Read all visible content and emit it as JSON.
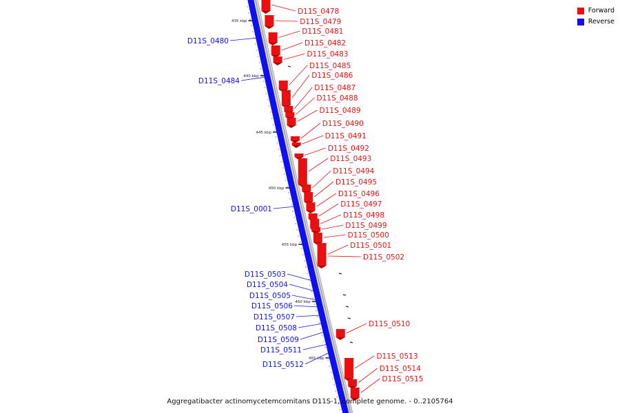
{
  "colors": {
    "forward": "#e81010",
    "reverse": "#1010ee",
    "backbone": "#b8b8b8"
  },
  "legend": [
    {
      "label": "Forward",
      "color": "#e81010"
    },
    {
      "label": "Reverse",
      "color": "#1010ee"
    }
  ],
  "caption": "Aggregatibacter actinomycetemcomitans D11S-1, complete genome. - 0..2105764",
  "ticks": [
    "435 kbp",
    "440 kbp",
    "445 kbp",
    "450 kbp",
    "455 kbp",
    "460 kbp",
    "465 kbp"
  ],
  "forward_labels": [
    "D11S_0478",
    "D11S_0479",
    "D11S_0481",
    "D11S_0482",
    "D11S_0483",
    "D11S_0485",
    "D11S_0486",
    "D11S_0487",
    "D11S_0488",
    "D11S_0489",
    "D11S_0490",
    "D11S_0491",
    "D11S_0492",
    "D11S_0493",
    "D11S_0494",
    "D11S_0495",
    "D11S_0496",
    "D11S_0497",
    "D11S_0498",
    "D11S_0499",
    "D11S_0500",
    "D11S_0501",
    "D11S_0502",
    "D11S_0510",
    "D11S_0513",
    "D11S_0514",
    "D11S_0515"
  ],
  "reverse_labels": [
    "D11S_0480",
    "D11S_0484",
    "D11S_0001",
    "D11S_0503",
    "D11S_0504",
    "D11S_0505",
    "D11S_0506",
    "D11S_0507",
    "D11S_0508",
    "D11S_0509",
    "D11S_0511",
    "D11S_0512"
  ]
}
